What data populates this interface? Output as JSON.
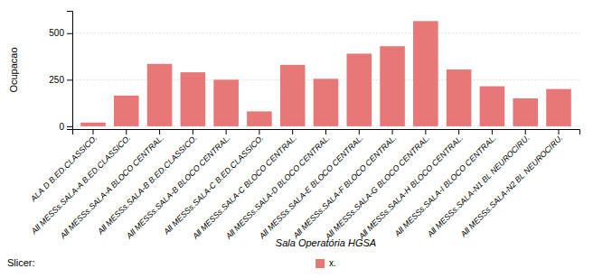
{
  "chart_data": {
    "type": "bar",
    "categories": [
      "ALA D B.ED.CLASSICO.",
      "All MESSs.SALA-A B.ED.CLASSICO.",
      "All MESSs.SALA-A BLOCO CENTRAL.",
      "All MESSs.SALA-B B.ED.CLASSICO.",
      "All MESSs.SALA-B BLOCO CENTRAL.",
      "All MESSs.SALA-C B.ED.CLASSICO.",
      "All MESSs.SALA-C BLOCO CENTRAL.",
      "All MESSs.SALA-D BLOCO CENTRAL.",
      "All MESSs.SALA-E BLOCO CENTRAL.",
      "All MESSs.SALA-F BLOCO CENTRAL.",
      "All MESSs.SALA-G BLOCO CENTRAL.",
      "All MESSs.SALA-H BLOCO CENTRAL.",
      "All MESSs.SALA-I BLOCO CENTRAL.",
      "All MESSs.SALA-N1 BL NEUROCIRU.",
      "All MESSs.SALA-N2 BL NEUROCIRU."
    ],
    "series": [
      {
        "name": "x.",
        "color": "#e87878",
        "values": [
          20,
          165,
          335,
          290,
          250,
          80,
          330,
          255,
          390,
          430,
          565,
          305,
          215,
          150,
          200
        ]
      }
    ],
    "xlabel": "Sala Operatória HGSA",
    "ylabel": "Ocupacao",
    "ylim": [
      -15,
      620
    ],
    "yticks": [
      0,
      250,
      500
    ],
    "grid": true,
    "legend": "bottom",
    "annotations": [
      "Slicer:"
    ]
  }
}
